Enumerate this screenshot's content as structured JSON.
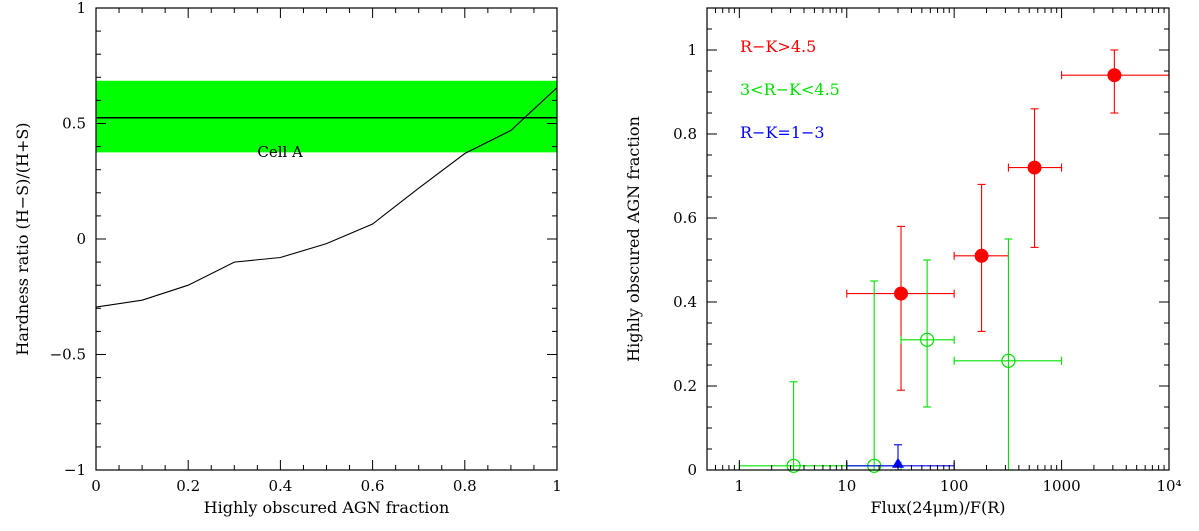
{
  "chart_data": [
    {
      "type": "line",
      "xlabel": "Highly obscured AGN fraction",
      "ylabel": "Hardness ratio (H−S)/(H+S)",
      "xlim": [
        0,
        1
      ],
      "ylim": [
        -1,
        1
      ],
      "xticks": [
        0,
        0.2,
        0.4,
        0.6,
        0.8,
        1
      ],
      "xtick_labels": [
        "0",
        "0.2",
        "0.4",
        "0.6",
        "0.8",
        "1"
      ],
      "yticks": [
        -1,
        -0.5,
        0,
        0.5,
        1
      ],
      "ytick_labels": [
        "−1",
        "−0.5",
        "0",
        "0.5",
        "1"
      ],
      "band": {
        "y0": 0.375,
        "y1": 0.685,
        "color": "#00ff00"
      },
      "hline": {
        "y": 0.525,
        "color": "#000000"
      },
      "annotation": "Cell A",
      "series": [
        {
          "x": [
            0,
            0.1,
            0.2,
            0.3,
            0.4,
            0.5,
            0.6,
            0.7,
            0.8,
            0.9,
            1.0
          ],
          "y": [
            -0.295,
            -0.265,
            -0.2,
            -0.1,
            -0.08,
            -0.02,
            0.065,
            0.22,
            0.37,
            0.47,
            0.655
          ],
          "color": "#000000"
        }
      ]
    },
    {
      "type": "scatter",
      "xlabel": "Flux(24μm)/F(R)",
      "ylabel": "Highly obscured AGN fraction",
      "xscale": "log",
      "xlim": [
        0.5,
        10000
      ],
      "ylim": [
        0,
        1.1
      ],
      "xticks": [
        1,
        10,
        100,
        1000,
        10000
      ],
      "xtick_labels": [
        "1",
        "10",
        "100",
        "1000",
        "10⁴"
      ],
      "yticks": [
        0,
        0.2,
        0.4,
        0.6,
        0.8,
        1
      ],
      "ytick_labels": [
        "0",
        "0.2",
        "0.4",
        "0.6",
        "0.8",
        "1"
      ],
      "legend_position": "top-left",
      "series": [
        {
          "name": "R−K>4.5",
          "color": "#ff0000",
          "marker": "filled-circle",
          "points": [
            {
              "x": 32,
              "y": 0.42,
              "xlo": 10,
              "xhi": 100,
              "ylo": 0.19,
              "yhi": 0.58
            },
            {
              "x": 180,
              "y": 0.51,
              "xlo": 100,
              "xhi": 320,
              "ylo": 0.33,
              "yhi": 0.68
            },
            {
              "x": 560,
              "y": 0.72,
              "xlo": 320,
              "xhi": 1000,
              "ylo": 0.53,
              "yhi": 0.86
            },
            {
              "x": 3100,
              "y": 0.94,
              "xlo": 1000,
              "xhi": 10000,
              "ylo": 0.85,
              "yhi": 1.0
            }
          ]
        },
        {
          "name": "3<R−K<4.5",
          "color": "#00e000",
          "marker": "open-circle",
          "points": [
            {
              "x": 3.2,
              "y": 0.01,
              "xlo": 1,
              "xhi": 10,
              "ylo": 0,
              "yhi": 0.21
            },
            {
              "x": 18,
              "y": 0.01,
              "xlo": 10,
              "xhi": 32,
              "ylo": 0,
              "yhi": 0.45
            },
            {
              "x": 56,
              "y": 0.31,
              "xlo": 32,
              "xhi": 100,
              "ylo": 0.15,
              "yhi": 0.5
            },
            {
              "x": 320,
              "y": 0.26,
              "xlo": 100,
              "xhi": 1000,
              "ylo": 0,
              "yhi": 0.55
            }
          ]
        },
        {
          "name": "R−K=1−3",
          "color": "#0000ff",
          "marker": "filled-triangle",
          "points": [
            {
              "x": 30,
              "y": 0.01,
              "xlo": 10,
              "xhi": 100,
              "ylo": 0,
              "yhi": 0.06
            }
          ]
        }
      ]
    }
  ]
}
